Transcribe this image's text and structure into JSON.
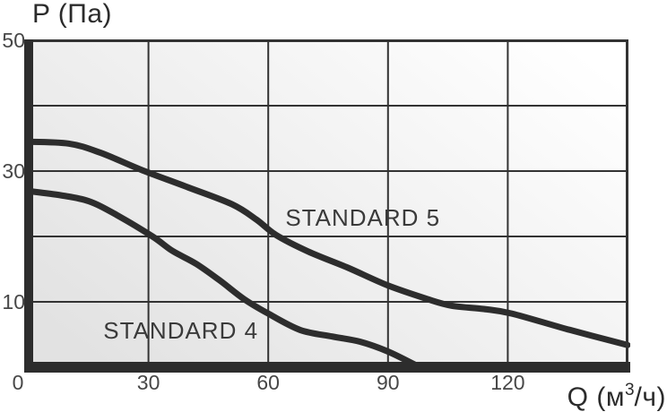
{
  "y_axis_title": "P (Па)",
  "x_axis_title_parts": {
    "prefix": "Q (м",
    "sup": "3",
    "suffix": "/ч)"
  },
  "chart_data": {
    "type": "line",
    "title": "",
    "xlabel": "Q (м³/ч)",
    "ylabel": "P (Па)",
    "xlim": [
      0,
      150
    ],
    "ylim": [
      0,
      50
    ],
    "x_ticks": [
      0,
      30,
      60,
      90,
      120
    ],
    "y_ticks": [
      50,
      30,
      10
    ],
    "grid_x": [
      30,
      60,
      90,
      120
    ],
    "grid_y": [
      10,
      20,
      30,
      40
    ],
    "grid_on": true,
    "legend_position": "inline-annotations",
    "series": [
      {
        "name": "STANDARD 5",
        "label_q": 83.7,
        "label_p": 22.9,
        "points": [
          [
            0,
            34.5
          ],
          [
            10,
            34.2
          ],
          [
            18,
            32.8
          ],
          [
            29,
            30.0
          ],
          [
            40,
            27.5
          ],
          [
            51,
            24.9
          ],
          [
            57,
            22.6
          ],
          [
            62,
            20.2
          ],
          [
            70,
            17.7
          ],
          [
            80,
            15.2
          ],
          [
            90,
            12.5
          ],
          [
            100,
            10.4
          ],
          [
            106,
            9.4
          ],
          [
            114,
            8.9
          ],
          [
            121,
            8.2
          ],
          [
            135,
            5.8
          ],
          [
            150,
            3.4
          ]
        ]
      },
      {
        "name": "STANDARD 4",
        "label_q": 38.1,
        "label_p": 5.6,
        "points": [
          [
            0,
            27.0
          ],
          [
            8,
            26.3
          ],
          [
            15,
            25.4
          ],
          [
            22,
            23.3
          ],
          [
            31,
            20.0
          ],
          [
            36,
            17.8
          ],
          [
            42,
            15.8
          ],
          [
            48,
            13.2
          ],
          [
            54,
            10.4
          ],
          [
            60,
            8.2
          ],
          [
            68,
            5.7
          ],
          [
            76,
            4.7
          ],
          [
            83,
            3.9
          ],
          [
            90,
            2.4
          ],
          [
            97,
            0.3
          ]
        ]
      }
    ]
  },
  "colors": {
    "axis_bar": "#2d2d2d",
    "grid_line": "#333333",
    "curve": "#2d2d2d",
    "plot_bg_start": "#e2e2e2",
    "plot_bg_end": "#ffffff",
    "tick_text": "#474747",
    "title_text": "#2b2b2b",
    "series_text": "#3a3a3a"
  }
}
